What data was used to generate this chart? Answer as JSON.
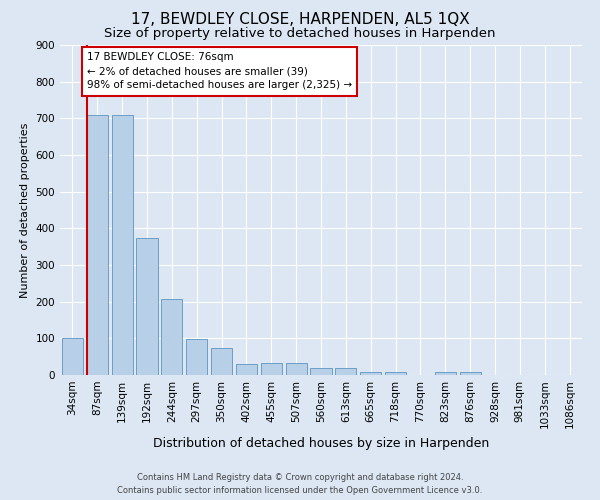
{
  "title": "17, BEWDLEY CLOSE, HARPENDEN, AL5 1QX",
  "subtitle": "Size of property relative to detached houses in Harpenden",
  "xlabel": "Distribution of detached houses by size in Harpenden",
  "ylabel": "Number of detached properties",
  "footer_line1": "Contains HM Land Registry data © Crown copyright and database right 2024.",
  "footer_line2": "Contains public sector information licensed under the Open Government Licence v3.0.",
  "categories": [
    "34sqm",
    "87sqm",
    "139sqm",
    "192sqm",
    "244sqm",
    "297sqm",
    "350sqm",
    "402sqm",
    "455sqm",
    "507sqm",
    "560sqm",
    "613sqm",
    "665sqm",
    "718sqm",
    "770sqm",
    "823sqm",
    "876sqm",
    "928sqm",
    "981sqm",
    "1033sqm",
    "1086sqm"
  ],
  "values": [
    100,
    710,
    710,
    375,
    207,
    97,
    73,
    30,
    33,
    33,
    20,
    20,
    8,
    8,
    0,
    8,
    8,
    0,
    0,
    0,
    0
  ],
  "bar_color": "#b8cfe8",
  "bar_edge_color": "#6b9ec8",
  "annotation_text_line1": "17 BEWDLEY CLOSE: 76sqm",
  "annotation_text_line2": "← 2% of detached houses are smaller (39)",
  "annotation_text_line3": "98% of semi-detached houses are larger (2,325) →",
  "annotation_box_color": "#cc0000",
  "red_line_x": 0.5,
  "bg_color": "#dce7f3",
  "plot_bg_color": "#dce7f3",
  "ylim": [
    0,
    900
  ],
  "yticks": [
    0,
    100,
    200,
    300,
    400,
    500,
    600,
    700,
    800,
    900
  ],
  "title_fontsize": 11,
  "subtitle_fontsize": 9.5,
  "xlabel_fontsize": 9,
  "ylabel_fontsize": 8,
  "tick_fontsize": 7.5,
  "annotation_fontsize": 7.5,
  "footer_fontsize": 6
}
